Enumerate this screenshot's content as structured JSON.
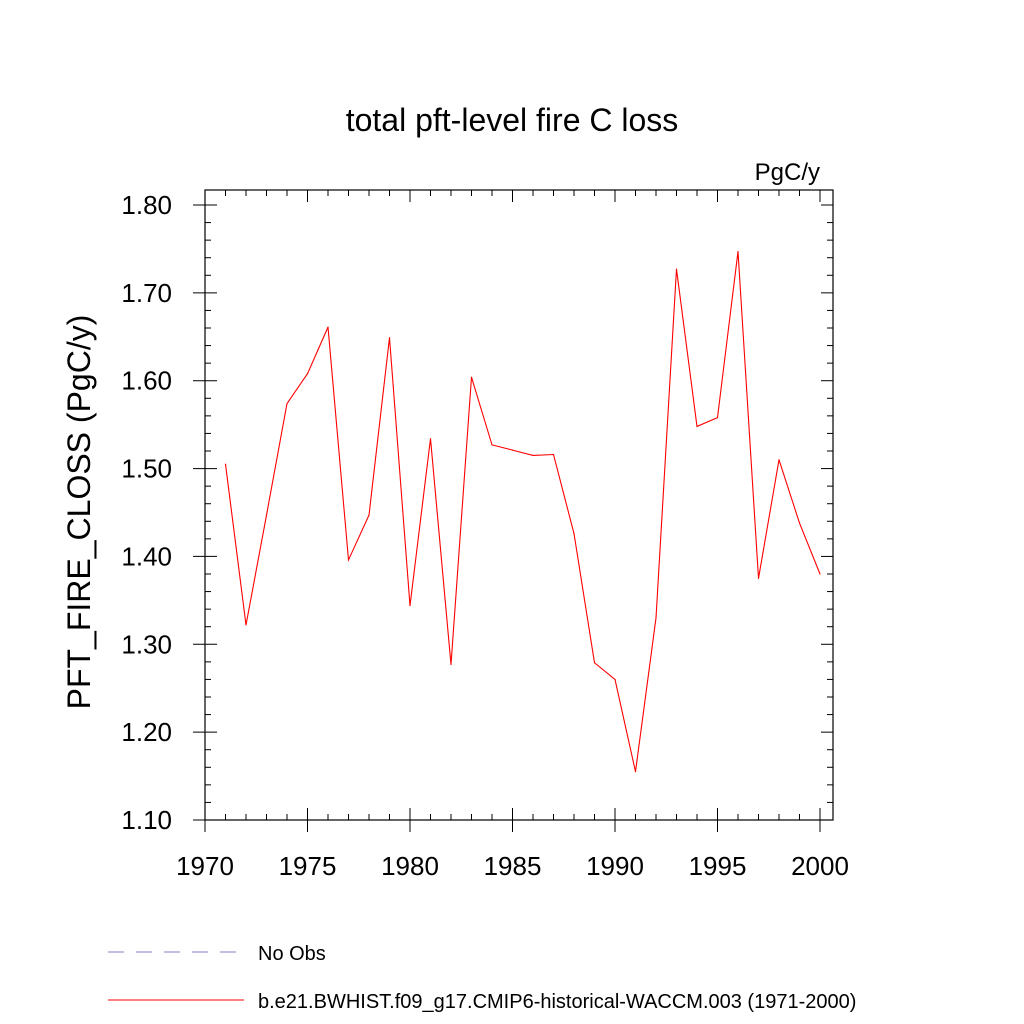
{
  "chart_data": {
    "type": "line",
    "title": "total pft-level fire C loss",
    "units_label": "PgC/y",
    "xlabel": "",
    "ylabel": "PFT_FIRE_CLOSS  (PgC/y)",
    "xlim": [
      1970,
      2000
    ],
    "ylim": [
      1.1,
      1.8
    ],
    "x_ticks": [
      1970,
      1975,
      1980,
      1985,
      1990,
      1995,
      2000
    ],
    "x_tick_labels": [
      "1970",
      "1975",
      "1980",
      "1985",
      "1990",
      "1995",
      "2000"
    ],
    "y_ticks": [
      1.1,
      1.2,
      1.3,
      1.4,
      1.5,
      1.6,
      1.7,
      1.8
    ],
    "y_tick_labels": [
      "1.10",
      "1.20",
      "1.30",
      "1.40",
      "1.50",
      "1.60",
      "1.70",
      "1.80"
    ],
    "x_minor_step": 1,
    "y_minor_step": 0.02,
    "grid": false,
    "legend_position": "bottom-left",
    "series": [
      {
        "name": "b.e21.BWHIST.f09_g17.CMIP6-historical-WACCM.003 (1971-2000)",
        "color": "#ff0000",
        "dash": "solid",
        "x": [
          1971,
          1972,
          1973,
          1974,
          1975,
          1976,
          1977,
          1978,
          1979,
          1980,
          1981,
          1982,
          1983,
          1984,
          1985,
          1986,
          1987,
          1988,
          1989,
          1990,
          1991,
          1992,
          1993,
          1994,
          1995,
          1996,
          1997,
          1998,
          1999,
          2000
        ],
        "values": [
          1.505,
          1.322,
          1.447,
          1.574,
          1.608,
          1.661,
          1.396,
          1.447,
          1.649,
          1.344,
          1.534,
          1.277,
          1.604,
          1.527,
          1.521,
          1.515,
          1.516,
          1.426,
          1.279,
          1.26,
          1.155,
          1.33,
          1.727,
          1.548,
          1.558,
          1.747,
          1.375,
          1.51,
          1.438,
          1.38
        ]
      },
      {
        "name": "No Obs",
        "color": "#8080cc",
        "dash": "dashed",
        "x": [],
        "values": []
      }
    ],
    "legend": [
      {
        "label": "No Obs",
        "color": "#8080cc",
        "dash": "dashed"
      },
      {
        "label": "b.e21.BWHIST.f09_g17.CMIP6-historical-WACCM.003 (1971-2000)",
        "color": "#ff0000",
        "dash": "solid"
      }
    ]
  }
}
